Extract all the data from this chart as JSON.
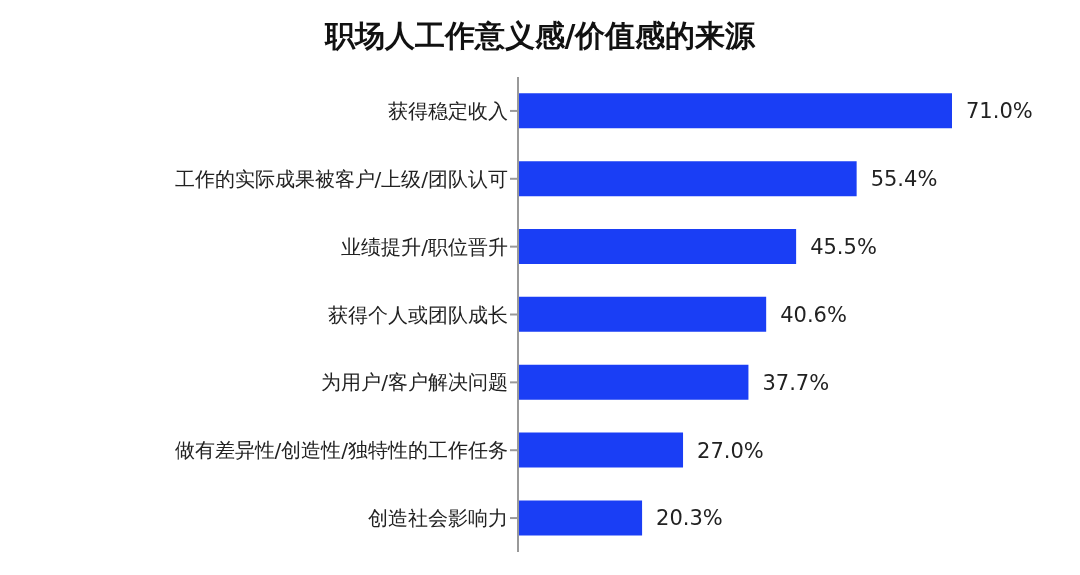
{
  "chart_data": {
    "type": "bar",
    "orientation": "horizontal",
    "title": "职场人工作意义感/价值感的来源",
    "categories": [
      "获得稳定收入",
      "工作的实际成果被客户/上级/团队认可",
      "业绩提升/职位晋升",
      "获得个人或团队成长",
      "为用户/客户解决问题",
      "做有差异性/创造性/独特性的工作任务",
      "创造社会影响力"
    ],
    "values": [
      71.0,
      55.4,
      45.5,
      40.6,
      37.7,
      27.0,
      20.3
    ],
    "value_labels": [
      "71.0%",
      "55.4%",
      "45.5%",
      "40.6%",
      "37.7%",
      "27.0%",
      "20.3%"
    ],
    "color": "#1a3ef5"
  }
}
